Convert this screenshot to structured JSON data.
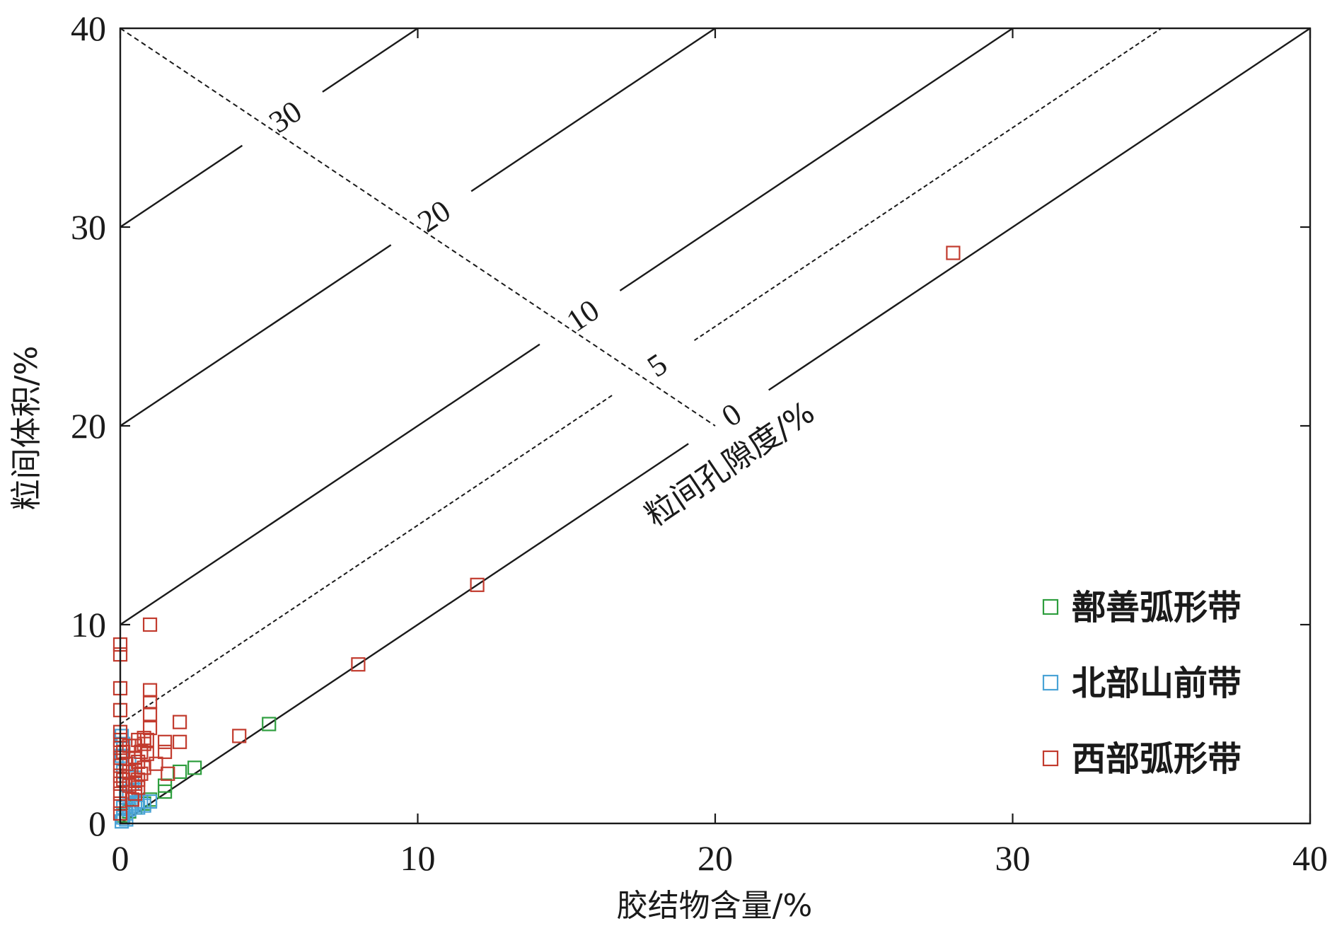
{
  "chart_data": {
    "type": "scatter",
    "title": "",
    "xlabel": "胶结物含量/%",
    "ylabel": "粒间体积/%",
    "xlim": [
      0,
      40
    ],
    "ylim": [
      0,
      40
    ],
    "x_ticks": [
      0,
      10,
      20,
      30,
      40
    ],
    "y_ticks": [
      0,
      10,
      20,
      30,
      40
    ],
    "grid": false,
    "legend_position": "bottom-right",
    "porosity_axis_label": "粒间孔隙度/%",
    "porosity_isolines": [
      {
        "label": "0",
        "value": 0,
        "style": "solid"
      },
      {
        "label": "5",
        "value": 5,
        "style": "dashed"
      },
      {
        "label": "10",
        "value": 10,
        "style": "solid"
      },
      {
        "label": "20",
        "value": 20,
        "style": "solid"
      },
      {
        "label": "30",
        "value": 30,
        "style": "solid"
      }
    ],
    "series": [
      {
        "name": "鄯善弧形带",
        "color": "#2e9e3e",
        "marker": "square-open",
        "points": [
          [
            5.0,
            5.0
          ],
          [
            2.5,
            2.8
          ],
          [
            2.0,
            2.6
          ],
          [
            1.5,
            1.9
          ],
          [
            1.5,
            1.6
          ],
          [
            1.0,
            1.2
          ],
          [
            0.8,
            1.0
          ],
          [
            0.5,
            0.8
          ],
          [
            0.3,
            0.6
          ],
          [
            0.1,
            0.4
          ]
        ]
      },
      {
        "name": "北部山前带",
        "color": "#4aa3d6",
        "marker": "square-open",
        "points": [
          [
            0.05,
            0.1
          ],
          [
            0.1,
            0.3
          ],
          [
            0.2,
            0.5
          ],
          [
            0.3,
            0.7
          ],
          [
            0.4,
            0.9
          ],
          [
            0.5,
            1.0
          ],
          [
            0.6,
            0.8
          ],
          [
            0.7,
            1.1
          ],
          [
            0.8,
            0.9
          ],
          [
            1.0,
            1.1
          ],
          [
            0.1,
            0.8
          ],
          [
            0.2,
            1.3
          ],
          [
            0.3,
            1.6
          ],
          [
            0.4,
            2.0
          ],
          [
            0.5,
            1.7
          ],
          [
            0.5,
            2.3
          ],
          [
            0.1,
            2.6
          ],
          [
            0.3,
            3.0
          ],
          [
            0.05,
            3.4
          ],
          [
            0.1,
            4.0
          ],
          [
            0.05,
            4.4
          ],
          [
            0.2,
            0.2
          ]
        ]
      },
      {
        "name": "西部弧形带",
        "color": "#c23b2e",
        "marker": "square-open",
        "points": [
          [
            28.0,
            28.7
          ],
          [
            12.0,
            12.0
          ],
          [
            8.0,
            8.0
          ],
          [
            4.0,
            4.4
          ],
          [
            2.0,
            5.1
          ],
          [
            2.0,
            4.1
          ],
          [
            1.6,
            2.5
          ],
          [
            1.5,
            3.6
          ],
          [
            1.5,
            4.1
          ],
          [
            1.2,
            3.0
          ],
          [
            1.0,
            10.0
          ],
          [
            1.0,
            6.7
          ],
          [
            1.0,
            6.1
          ],
          [
            1.0,
            5.5
          ],
          [
            1.0,
            4.8
          ],
          [
            0.9,
            4.2
          ],
          [
            0.9,
            3.5
          ],
          [
            0.8,
            2.8
          ],
          [
            0.8,
            4.0
          ],
          [
            0.7,
            3.6
          ],
          [
            0.7,
            2.5
          ],
          [
            0.6,
            3.1
          ],
          [
            0.6,
            2.2
          ],
          [
            0.6,
            1.8
          ],
          [
            0.5,
            3.9
          ],
          [
            0.5,
            3.3
          ],
          [
            0.5,
            2.7
          ],
          [
            0.5,
            2.0
          ],
          [
            0.5,
            1.5
          ],
          [
            0.4,
            1.2
          ],
          [
            0.0,
            9.0
          ],
          [
            0.0,
            8.5
          ],
          [
            0.0,
            6.8
          ],
          [
            0.0,
            5.7
          ],
          [
            0.0,
            4.6
          ],
          [
            0.0,
            4.2
          ],
          [
            0.0,
            3.8
          ],
          [
            0.0,
            3.3
          ],
          [
            0.0,
            2.9
          ],
          [
            0.0,
            2.4
          ],
          [
            0.0,
            2.0
          ],
          [
            0.0,
            1.5
          ],
          [
            0.0,
            1.0
          ],
          [
            0.0,
            0.5
          ],
          [
            0.1,
            3.6
          ],
          [
            0.1,
            2.2
          ],
          [
            0.2,
            3.0
          ],
          [
            0.3,
            2.6
          ],
          [
            0.3,
            3.9
          ],
          [
            0.3,
            1.9
          ],
          [
            0.6,
            4.2
          ],
          [
            0.8,
            4.3
          ]
        ]
      }
    ]
  }
}
